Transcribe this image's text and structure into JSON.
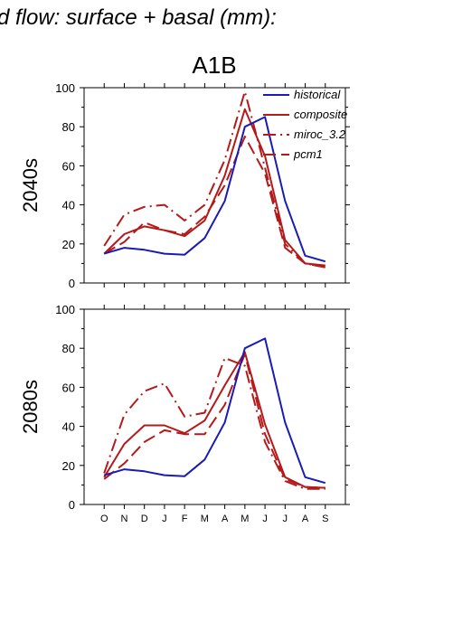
{
  "figure": {
    "title": "d flow: surface + basal (mm):",
    "scenario": "A1B"
  },
  "legend": [
    {
      "name": "historical",
      "color": "#1a1ab4",
      "dash": "solid"
    },
    {
      "name": "composite",
      "color": "#b41a1a",
      "dash": "solid"
    },
    {
      "name": "miroc_3.2",
      "color": "#b41a1a",
      "dash": "dashdot"
    },
    {
      "name": "pcm1",
      "color": "#b41a1a",
      "dash": "dashed"
    }
  ],
  "chart_data": [
    {
      "type": "line",
      "panel_label": "2040s",
      "categories": [
        "O",
        "N",
        "D",
        "J",
        "F",
        "M",
        "A",
        "M",
        "J",
        "J",
        "A",
        "S"
      ],
      "ylim": [
        0,
        100
      ],
      "yticks": [
        0,
        20,
        40,
        60,
        80,
        100
      ],
      "grid": false,
      "legend_position": "top-right",
      "series": [
        {
          "name": "historical",
          "values": [
            15,
            18,
            17,
            15,
            14.5,
            23,
            42,
            80,
            85,
            42,
            14,
            11
          ]
        },
        {
          "name": "composite",
          "values": [
            15,
            25,
            29,
            27,
            24,
            32,
            55,
            89,
            65,
            22,
            10,
            9
          ]
        },
        {
          "name": "miroc_3.2",
          "values": [
            19,
            35,
            39,
            40,
            32,
            40,
            63,
            98,
            59,
            20,
            10,
            8
          ]
        },
        {
          "name": "pcm1",
          "values": [
            15,
            21,
            31,
            27,
            25,
            34,
            50,
            75,
            56,
            18,
            10,
            8
          ]
        }
      ]
    },
    {
      "type": "line",
      "panel_label": "2080s",
      "categories": [
        "O",
        "N",
        "D",
        "J",
        "F",
        "M",
        "A",
        "M",
        "J",
        "J",
        "A",
        "S"
      ],
      "ylim": [
        0,
        100
      ],
      "yticks": [
        0,
        20,
        40,
        60,
        80,
        100
      ],
      "grid": false,
      "series": [
        {
          "name": "historical",
          "values": [
            15,
            18,
            17,
            15,
            14.5,
            23,
            42,
            80,
            85,
            42,
            14,
            11
          ]
        },
        {
          "name": "composite",
          "values": [
            14,
            31,
            40.5,
            40.5,
            36.5,
            43,
            61,
            78,
            41,
            14,
            9,
            8.5
          ]
        },
        {
          "name": "miroc_3.2",
          "values": [
            16,
            46,
            58,
            62,
            45,
            47,
            75,
            71,
            32,
            12,
            8,
            8
          ]
        },
        {
          "name": "pcm1",
          "values": [
            13,
            21,
            32,
            38,
            36,
            36,
            51,
            77,
            36,
            13,
            9,
            8.5
          ]
        }
      ]
    }
  ]
}
